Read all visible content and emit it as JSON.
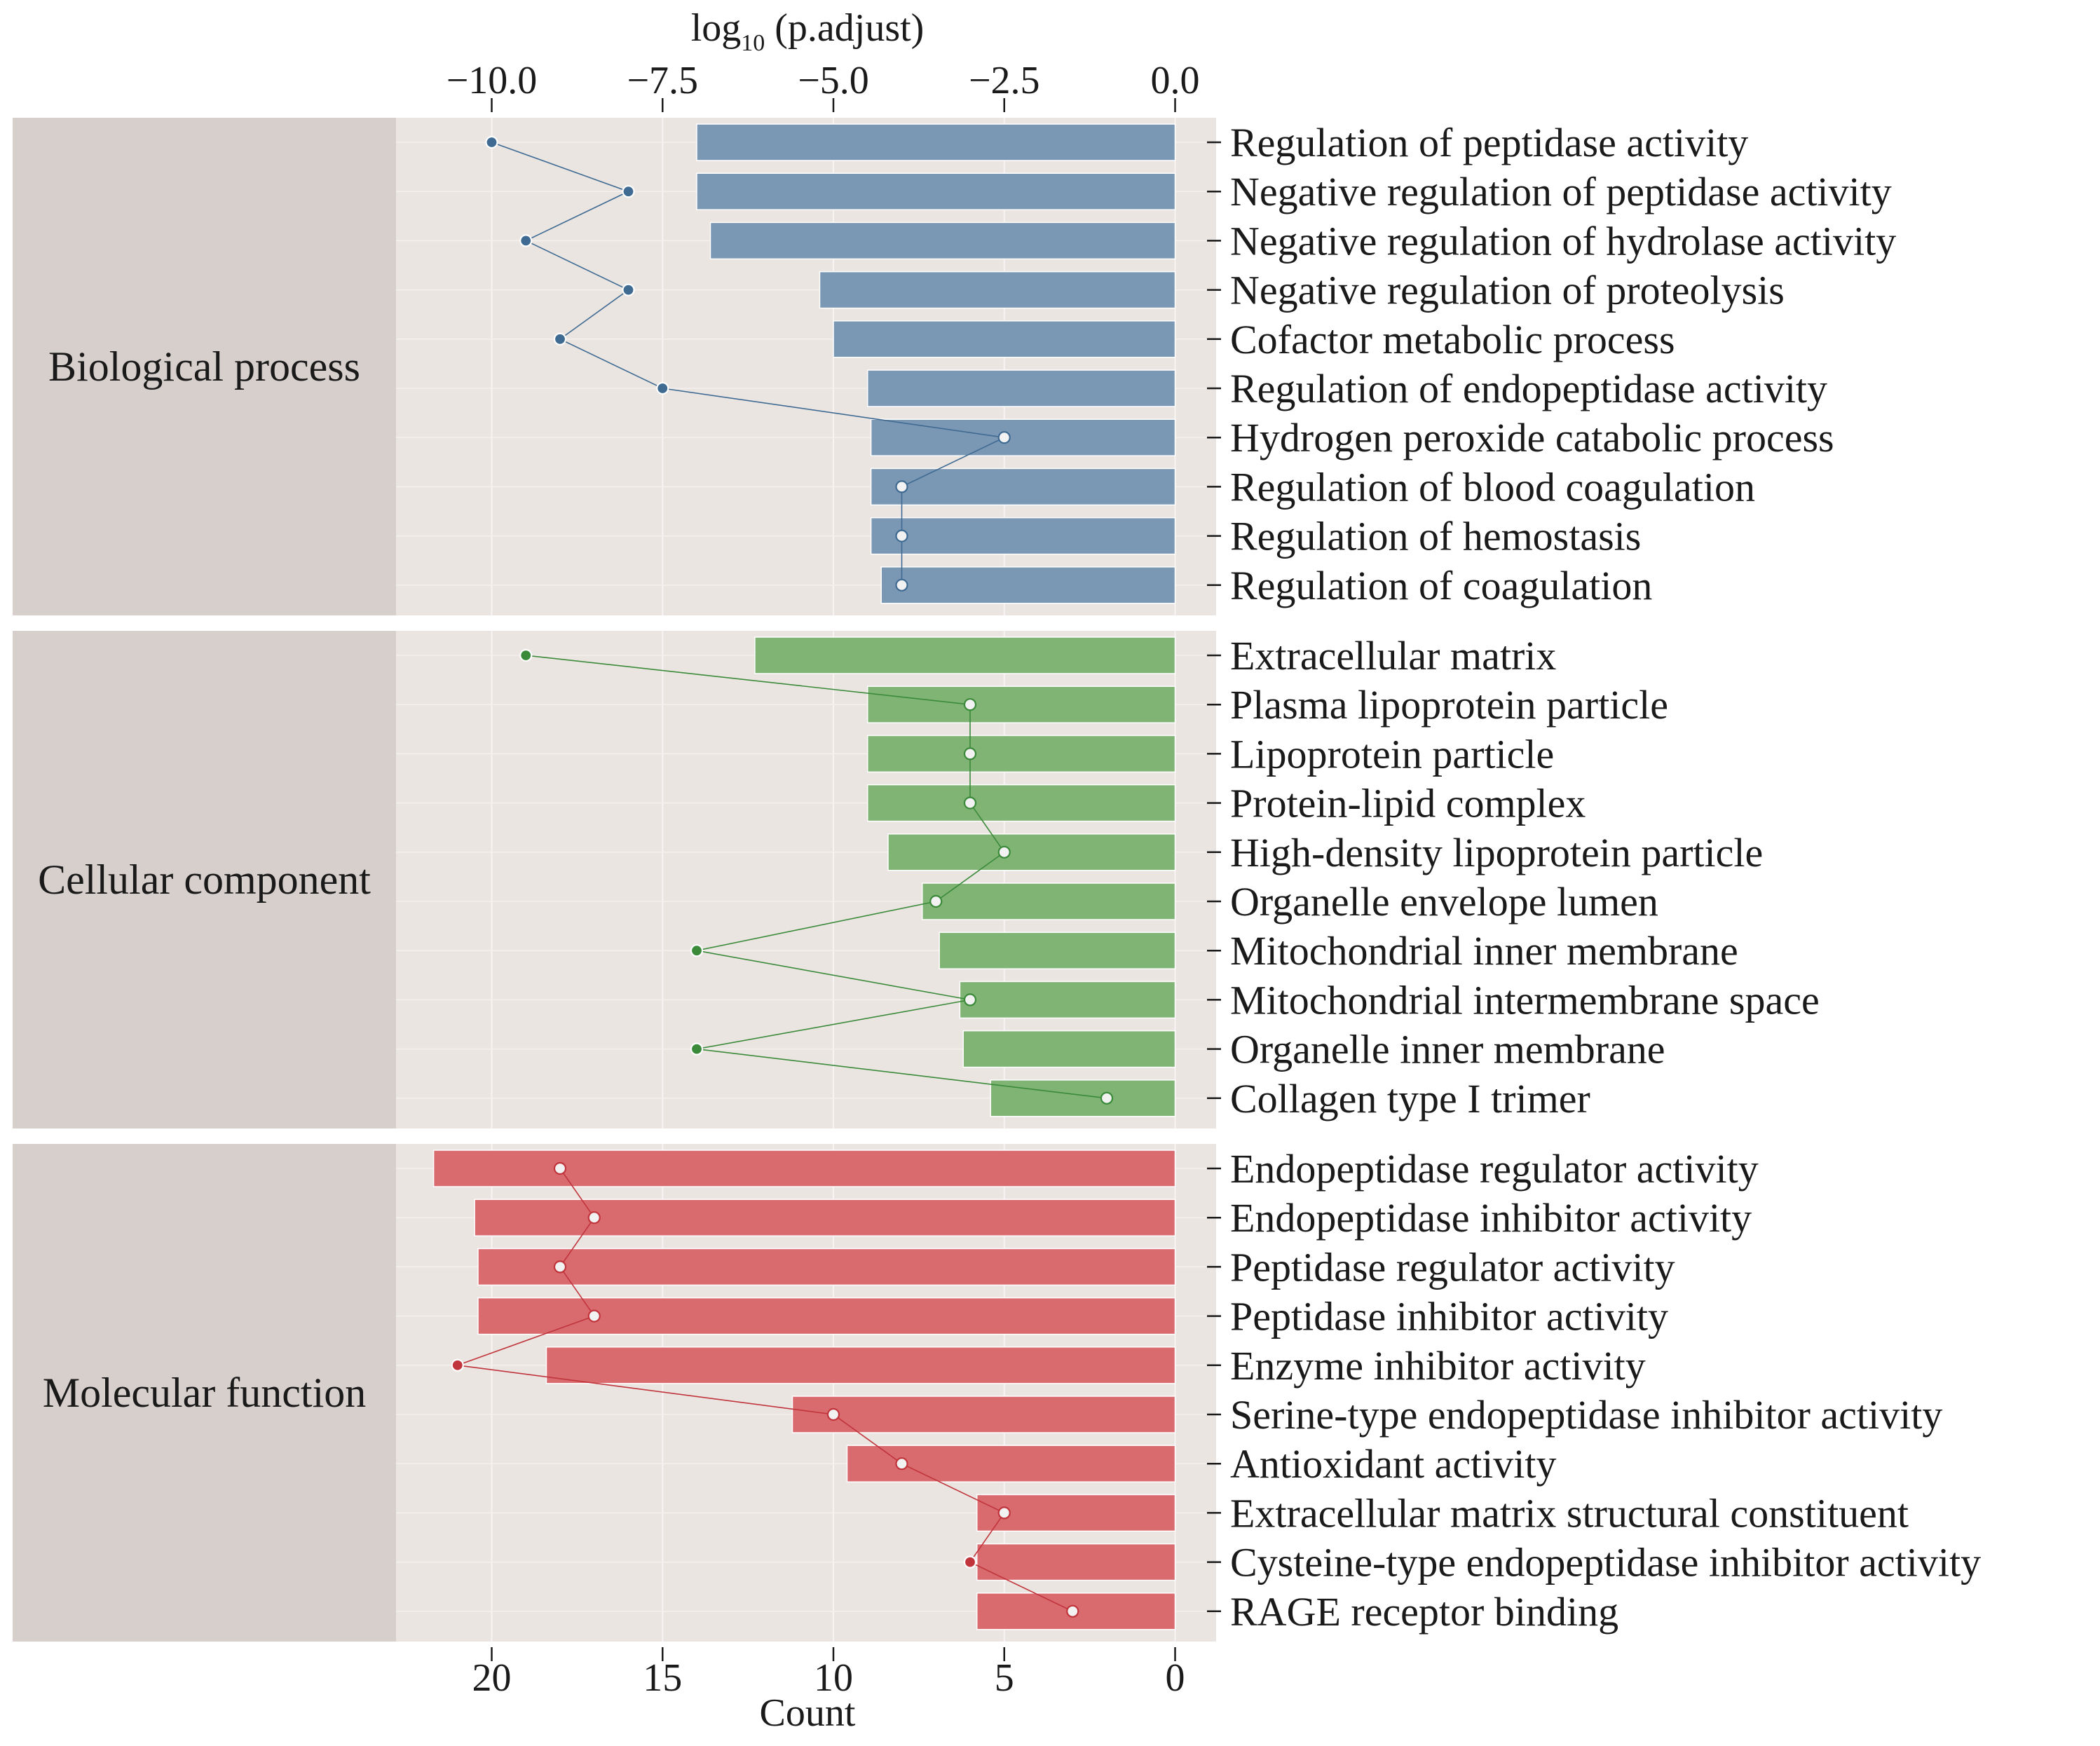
{
  "chart_data": {
    "type": "bar",
    "top_axis": {
      "label_main": "log",
      "label_sub": "10",
      "label_rest": " (p.adjust)",
      "ticks": [
        -10.0,
        -7.5,
        -5.0,
        -2.5,
        0.0
      ],
      "tick_labels": [
        "−10.0",
        "−7.5",
        "−5.0",
        "−2.5",
        "0.0"
      ],
      "range": [
        -11.4,
        0.6
      ]
    },
    "bottom_axis": {
      "label": "Count",
      "ticks": [
        20,
        15,
        10,
        5,
        0
      ],
      "tick_labels": [
        "20",
        "15",
        "10",
        "5",
        "0"
      ],
      "range": [
        22.8,
        -1.2
      ]
    },
    "grid": true,
    "panels": [
      {
        "name": "Biological process",
        "bar_color": "#7a97b3",
        "point_color": "#3f6b93",
        "terms": [
          {
            "label": "Regulation of peptidase activity",
            "log10_padj": -7.0,
            "count": 20
          },
          {
            "label": "Negative regulation of peptidase activity",
            "log10_padj": -7.0,
            "count": 16
          },
          {
            "label": "Negative regulation of hydrolase activity",
            "log10_padj": -6.8,
            "count": 19
          },
          {
            "label": "Negative regulation of proteolysis",
            "log10_padj": -5.2,
            "count": 16
          },
          {
            "label": "Cofactor metabolic process",
            "log10_padj": -5.0,
            "count": 18
          },
          {
            "label": "Regulation of endopeptidase activity",
            "log10_padj": -4.5,
            "count": 15
          },
          {
            "label": "Hydrogen peroxide catabolic process",
            "log10_padj": -4.45,
            "count": 5
          },
          {
            "label": "Regulation of blood coagulation",
            "log10_padj": -4.45,
            "count": 8
          },
          {
            "label": "Regulation of hemostasis",
            "log10_padj": -4.45,
            "count": 8
          },
          {
            "label": "Regulation of coagulation",
            "log10_padj": -4.3,
            "count": 8
          }
        ]
      },
      {
        "name": "Cellular component",
        "bar_color": "#7fb474",
        "point_color": "#3a8a3a",
        "terms": [
          {
            "label": "Extracellular matrix",
            "log10_padj": -6.15,
            "count": 19
          },
          {
            "label": "Plasma lipoprotein particle",
            "log10_padj": -4.5,
            "count": 6
          },
          {
            "label": "Lipoprotein particle",
            "log10_padj": -4.5,
            "count": 6
          },
          {
            "label": "Protein-lipid complex",
            "log10_padj": -4.5,
            "count": 6
          },
          {
            "label": "High-density lipoprotein particle",
            "log10_padj": -4.2,
            "count": 5
          },
          {
            "label": "Organelle envelope lumen",
            "log10_padj": -3.7,
            "count": 7
          },
          {
            "label": "Mitochondrial inner membrane",
            "log10_padj": -3.45,
            "count": 14
          },
          {
            "label": "Mitochondrial intermembrane space",
            "log10_padj": -3.15,
            "count": 6
          },
          {
            "label": "Organelle inner membrane",
            "log10_padj": -3.1,
            "count": 14
          },
          {
            "label": "Collagen type I trimer",
            "log10_padj": -2.7,
            "count": 2
          }
        ]
      },
      {
        "name": "Molecular function",
        "bar_color": "#d96a6e",
        "point_color": "#c0343b",
        "terms": [
          {
            "label": "Endopeptidase regulator activity",
            "log10_padj": -10.85,
            "count": 18
          },
          {
            "label": "Endopeptidase inhibitor activity",
            "log10_padj": -10.25,
            "count": 17
          },
          {
            "label": "Peptidase regulator activity",
            "log10_padj": -10.2,
            "count": 18
          },
          {
            "label": "Peptidase inhibitor activity",
            "log10_padj": -10.2,
            "count": 17
          },
          {
            "label": "Enzyme inhibitor activity",
            "log10_padj": -9.2,
            "count": 21
          },
          {
            "label": "Serine-type endopeptidase inhibitor activity",
            "log10_padj": -5.6,
            "count": 10
          },
          {
            "label": "Antioxidant activity",
            "log10_padj": -4.8,
            "count": 8
          },
          {
            "label": "Extracellular matrix structural constituent",
            "log10_padj": -2.9,
            "count": 5
          },
          {
            "label": "Cysteine-type endopeptidase inhibitor activity",
            "log10_padj": -2.9,
            "count": 6
          },
          {
            "label": "RAGE receptor binding",
            "log10_padj": -2.9,
            "count": 3
          }
        ]
      }
    ]
  }
}
